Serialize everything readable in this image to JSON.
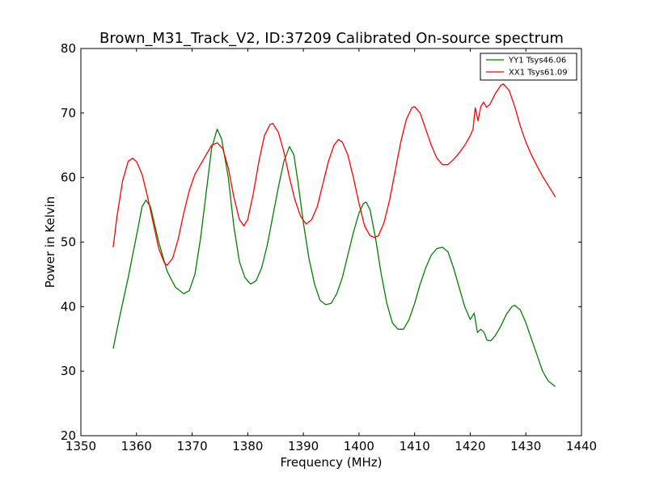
{
  "chart_data": {
    "type": "line",
    "title": "Brown_M31_Track_V2, ID:37209 Calibrated On-source spectrum",
    "xlabel": "Frequency (MHz)",
    "ylabel": "Power in Kelvin",
    "xlim": [
      1350,
      1440
    ],
    "ylim": [
      20,
      80
    ],
    "xticks": [
      "1350",
      "1360",
      "1370",
      "1380",
      "1390",
      "1400",
      "1410",
      "1420",
      "1430",
      "1440"
    ],
    "yticks": [
      "20",
      "30",
      "40",
      "50",
      "60",
      "70",
      "80"
    ],
    "grid": false,
    "legend_position": "top-right",
    "series": [
      {
        "name": "YY1 Tsys46.06",
        "color": "#008000",
        "points": [
          [
            1355.8,
            33.5
          ],
          [
            1357.0,
            38.5
          ],
          [
            1358.5,
            44.5
          ],
          [
            1360.0,
            51.0
          ],
          [
            1361.0,
            55.5
          ],
          [
            1361.7,
            56.5
          ],
          [
            1362.5,
            55.5
          ],
          [
            1364.0,
            50.0
          ],
          [
            1365.5,
            45.5
          ],
          [
            1367.0,
            43.0
          ],
          [
            1368.5,
            42.0
          ],
          [
            1369.5,
            42.5
          ],
          [
            1370.5,
            45.0
          ],
          [
            1371.5,
            50.5
          ],
          [
            1372.5,
            57.5
          ],
          [
            1373.5,
            64.5
          ],
          [
            1374.5,
            67.5
          ],
          [
            1375.3,
            66.0
          ],
          [
            1376.5,
            60.0
          ],
          [
            1377.5,
            52.5
          ],
          [
            1378.5,
            47.0
          ],
          [
            1379.5,
            44.5
          ],
          [
            1380.5,
            43.5
          ],
          [
            1381.5,
            44.0
          ],
          [
            1382.5,
            46.0
          ],
          [
            1383.5,
            49.5
          ],
          [
            1384.5,
            54.0
          ],
          [
            1385.5,
            58.5
          ],
          [
            1386.5,
            62.5
          ],
          [
            1387.5,
            64.8
          ],
          [
            1388.3,
            63.5
          ],
          [
            1389.0,
            59.5
          ],
          [
            1390.0,
            53.0
          ],
          [
            1391.0,
            47.5
          ],
          [
            1392.0,
            43.5
          ],
          [
            1393.0,
            41.0
          ],
          [
            1394.0,
            40.3
          ],
          [
            1395.0,
            40.5
          ],
          [
            1396.0,
            42.0
          ],
          [
            1397.0,
            44.5
          ],
          [
            1398.0,
            48.0
          ],
          [
            1399.0,
            51.5
          ],
          [
            1400.0,
            54.5
          ],
          [
            1400.8,
            56.0
          ],
          [
            1401.3,
            56.2
          ],
          [
            1402.0,
            55.0
          ],
          [
            1403.0,
            50.5
          ],
          [
            1404.0,
            45.0
          ],
          [
            1405.0,
            40.5
          ],
          [
            1406.0,
            37.5
          ],
          [
            1407.0,
            36.5
          ],
          [
            1408.0,
            36.5
          ],
          [
            1409.0,
            38.0
          ],
          [
            1410.0,
            40.5
          ],
          [
            1411.0,
            43.5
          ],
          [
            1412.0,
            46.0
          ],
          [
            1413.0,
            48.0
          ],
          [
            1414.0,
            49.0
          ],
          [
            1415.0,
            49.2
          ],
          [
            1416.0,
            48.5
          ],
          [
            1417.0,
            46.0
          ],
          [
            1418.0,
            43.0
          ],
          [
            1419.0,
            40.0
          ],
          [
            1420.0,
            38.0
          ],
          [
            1420.7,
            39.0
          ],
          [
            1421.3,
            36.0
          ],
          [
            1421.9,
            36.5
          ],
          [
            1422.5,
            36.0
          ],
          [
            1423.0,
            34.8
          ],
          [
            1423.7,
            34.7
          ],
          [
            1424.5,
            35.5
          ],
          [
            1425.5,
            37.0
          ],
          [
            1426.5,
            38.8
          ],
          [
            1427.5,
            40.0
          ],
          [
            1428.0,
            40.2
          ],
          [
            1429.0,
            39.5
          ],
          [
            1430.0,
            37.5
          ],
          [
            1431.0,
            35.0
          ],
          [
            1432.0,
            32.5
          ],
          [
            1433.0,
            30.0
          ],
          [
            1434.0,
            28.5
          ],
          [
            1435.3,
            27.6
          ]
        ]
      },
      {
        "name": "XX1 Tsys61.09",
        "color": "#ff0000",
        "points": [
          [
            1355.8,
            49.2
          ],
          [
            1356.5,
            54.0
          ],
          [
            1357.5,
            59.5
          ],
          [
            1358.5,
            62.5
          ],
          [
            1359.3,
            63.0
          ],
          [
            1360.0,
            62.5
          ],
          [
            1361.0,
            60.5
          ],
          [
            1362.0,
            57.0
          ],
          [
            1363.0,
            53.0
          ],
          [
            1364.0,
            49.0
          ],
          [
            1365.0,
            46.8
          ],
          [
            1365.5,
            46.4
          ],
          [
            1366.5,
            47.5
          ],
          [
            1367.5,
            50.5
          ],
          [
            1368.5,
            54.5
          ],
          [
            1369.5,
            58.0
          ],
          [
            1370.5,
            60.5
          ],
          [
            1371.5,
            62.0
          ],
          [
            1372.5,
            63.5
          ],
          [
            1373.5,
            65.0
          ],
          [
            1374.5,
            65.4
          ],
          [
            1375.5,
            64.5
          ],
          [
            1376.5,
            61.5
          ],
          [
            1377.5,
            57.0
          ],
          [
            1378.5,
            53.5
          ],
          [
            1379.3,
            52.5
          ],
          [
            1380.0,
            53.5
          ],
          [
            1381.0,
            57.5
          ],
          [
            1382.0,
            62.5
          ],
          [
            1383.0,
            66.5
          ],
          [
            1384.0,
            68.2
          ],
          [
            1384.5,
            68.4
          ],
          [
            1385.5,
            67.0
          ],
          [
            1386.5,
            64.0
          ],
          [
            1387.5,
            60.0
          ],
          [
            1388.5,
            56.5
          ],
          [
            1389.5,
            54.0
          ],
          [
            1390.5,
            52.8
          ],
          [
            1391.5,
            53.5
          ],
          [
            1392.5,
            55.5
          ],
          [
            1393.5,
            59.0
          ],
          [
            1394.5,
            62.5
          ],
          [
            1395.5,
            65.0
          ],
          [
            1396.3,
            65.9
          ],
          [
            1397.0,
            65.5
          ],
          [
            1398.0,
            63.5
          ],
          [
            1399.0,
            60.0
          ],
          [
            1400.0,
            56.0
          ],
          [
            1401.0,
            52.5
          ],
          [
            1402.0,
            51.0
          ],
          [
            1402.8,
            50.7
          ],
          [
            1403.5,
            51.0
          ],
          [
            1404.5,
            53.0
          ],
          [
            1405.5,
            56.5
          ],
          [
            1406.5,
            61.0
          ],
          [
            1407.5,
            65.5
          ],
          [
            1408.5,
            69.0
          ],
          [
            1409.5,
            70.8
          ],
          [
            1410.0,
            71.0
          ],
          [
            1411.0,
            70.0
          ],
          [
            1412.0,
            67.5
          ],
          [
            1413.0,
            65.0
          ],
          [
            1414.0,
            63.0
          ],
          [
            1415.0,
            62.0
          ],
          [
            1416.0,
            62.0
          ],
          [
            1417.0,
            62.8
          ],
          [
            1418.0,
            63.8
          ],
          [
            1419.0,
            65.0
          ],
          [
            1420.0,
            66.5
          ],
          [
            1420.5,
            67.5
          ],
          [
            1420.9,
            70.8
          ],
          [
            1421.4,
            68.8
          ],
          [
            1421.9,
            71.0
          ],
          [
            1422.4,
            71.7
          ],
          [
            1422.9,
            70.9
          ],
          [
            1423.5,
            71.3
          ],
          [
            1424.5,
            73.0
          ],
          [
            1425.5,
            74.3
          ],
          [
            1426.0,
            74.5
          ],
          [
            1427.0,
            73.5
          ],
          [
            1428.0,
            71.0
          ],
          [
            1429.0,
            68.0
          ],
          [
            1430.0,
            65.5
          ],
          [
            1431.0,
            63.5
          ],
          [
            1432.0,
            61.8
          ],
          [
            1433.0,
            60.2
          ],
          [
            1434.0,
            58.8
          ],
          [
            1435.3,
            57.0
          ]
        ]
      }
    ]
  }
}
